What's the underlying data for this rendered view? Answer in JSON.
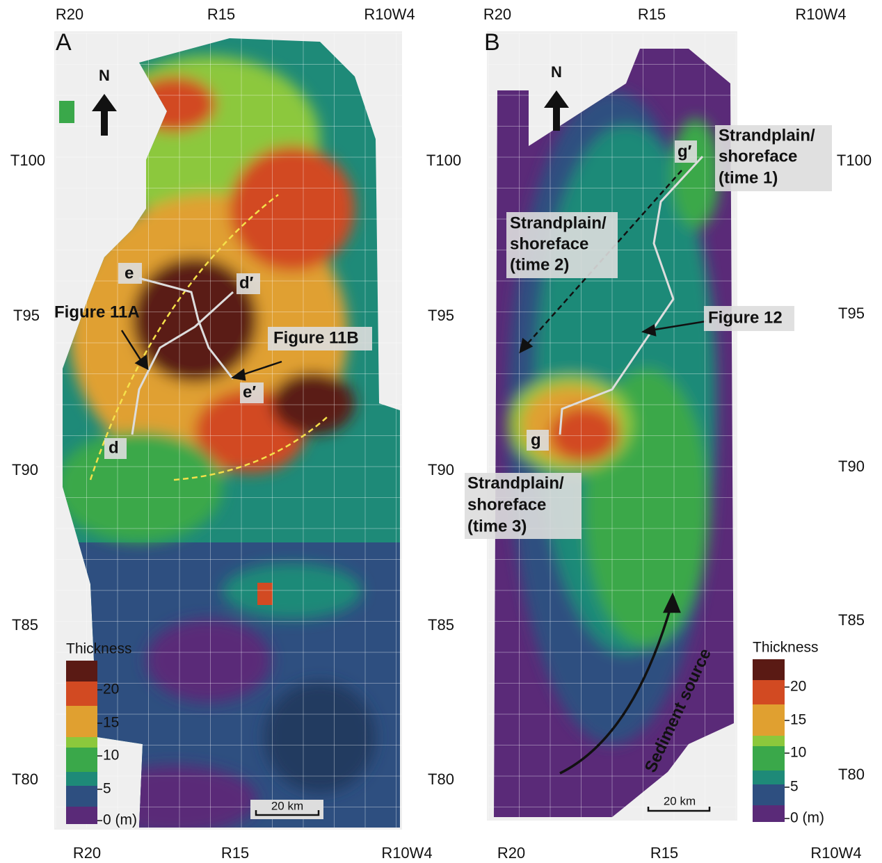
{
  "panels": [
    {
      "label": "A",
      "top_labels": [
        "R20",
        "R15",
        "R10W4"
      ],
      "bottom_labels": [
        "R20",
        "R15",
        "R10W4"
      ],
      "left_labels": [
        "T100",
        "T95",
        "T90",
        "T85",
        "T80"
      ],
      "north": "N",
      "annotations": [
        "e",
        "d′",
        "e′",
        "d",
        "Figure 11A",
        "Figure 11B"
      ],
      "legend": {
        "title": "Thickness",
        "ticks": [
          "20",
          "15",
          "10",
          "5",
          "0 (m)"
        ]
      },
      "scale": "20 km"
    },
    {
      "label": "B",
      "top_labels": [
        "R20",
        "R15",
        "R10W4"
      ],
      "bottom_labels": [
        "R20",
        "R15",
        "R10W4"
      ],
      "left_labels": [
        "T100",
        "T95",
        "T90",
        "T85",
        "T80"
      ],
      "right_labels": [
        "T100",
        "T95",
        "T90",
        "T85",
        "T80"
      ],
      "north": "N",
      "annotations": [
        "g′",
        "g",
        "Figure 12",
        "Sediment source"
      ],
      "strandplain_labels": [
        [
          "Strandplain/",
          "shoreface",
          "(time 1)"
        ],
        [
          "Strandplain/",
          "shoreface",
          "(time 2)"
        ],
        [
          "Strandplain/",
          "shoreface",
          "(time 3)"
        ]
      ],
      "legend": {
        "title": "Thickness",
        "ticks": [
          "20",
          "15",
          "10",
          "5",
          "0 (m)"
        ]
      },
      "scale": "20 km"
    }
  ]
}
